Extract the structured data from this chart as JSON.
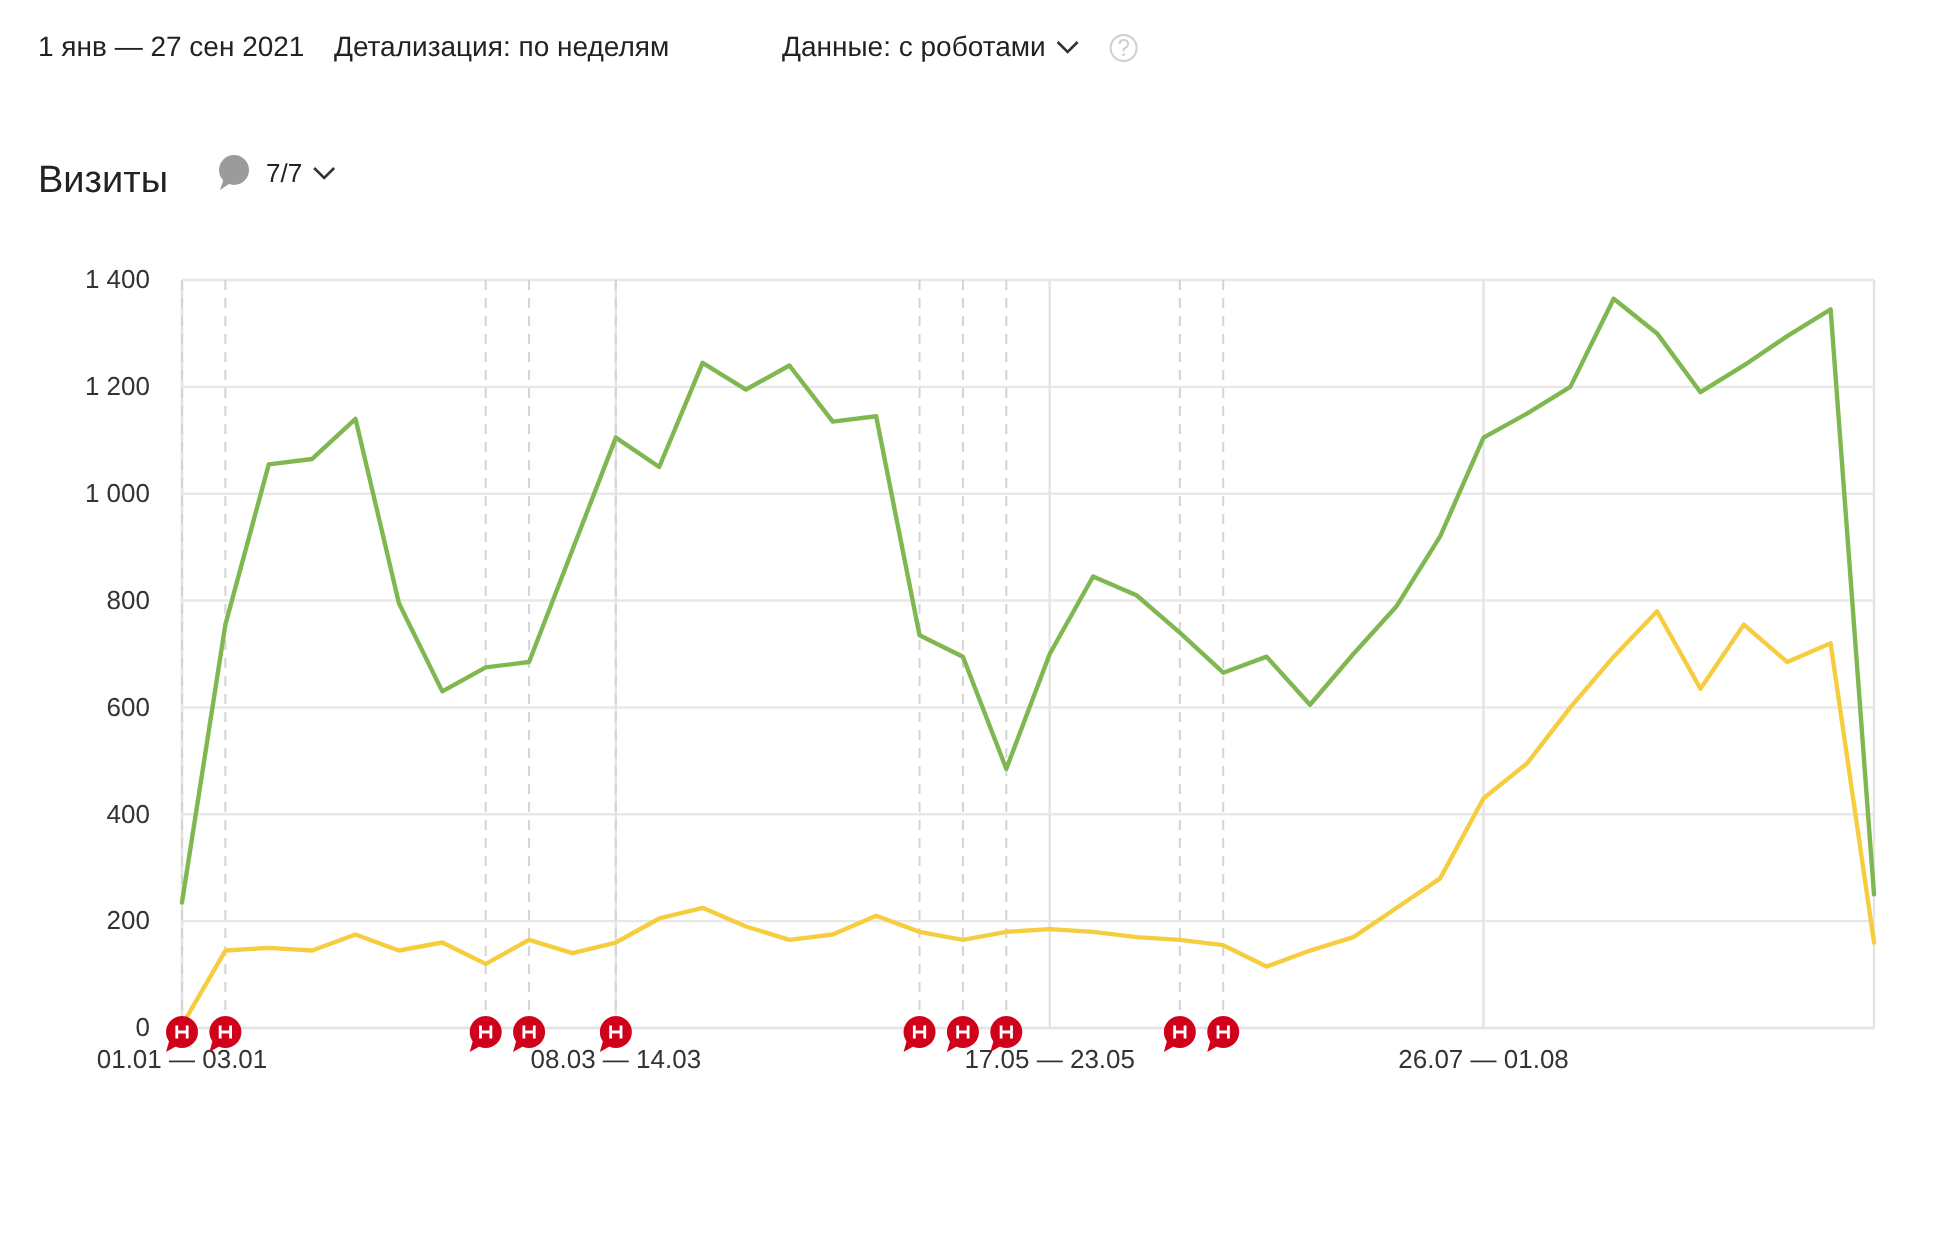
{
  "chart_data": {
    "type": "line",
    "title": "Визиты",
    "annotations": [
      "1 янв — 27 сен 2021",
      "Детализация: по неделям",
      "Данные: с роботами",
      "7/7"
    ],
    "x": [
      "2020-12-28",
      "2021-01-04",
      "2021-01-11",
      "2021-01-18",
      "2021-01-25",
      "2021-02-01",
      "2021-02-08",
      "2021-02-15",
      "2021-02-22",
      "2021-03-01",
      "2021-03-08",
      "2021-03-15",
      "2021-03-22",
      "2021-03-29",
      "2021-04-05",
      "2021-04-12",
      "2021-04-19",
      "2021-04-26",
      "2021-05-03",
      "2021-05-10",
      "2021-05-17",
      "2021-05-24",
      "2021-05-31",
      "2021-06-07",
      "2021-06-14",
      "2021-06-21",
      "2021-06-28",
      "2021-07-05",
      "2021-07-12",
      "2021-07-19",
      "2021-07-26",
      "2021-08-02",
      "2021-08-09",
      "2021-08-16",
      "2021-08-23",
      "2021-08-30",
      "2021-09-06",
      "2021-09-13",
      "2021-09-20",
      "2021-09-27"
    ],
    "series": [
      {
        "color": "#7fb850",
        "values": [
          235,
          755,
          1055,
          1065,
          1140,
          795,
          630,
          675,
          685,
          895,
          1105,
          1050,
          1245,
          1195,
          1240,
          1135,
          1145,
          735,
          695,
          485,
          700,
          845,
          810,
          740,
          665,
          695,
          605,
          700,
          790,
          920,
          1105,
          1150,
          1200,
          1365,
          1300,
          1190,
          1240,
          1295,
          1345,
          250
        ]
      },
      {
        "color": "#f5cd3f",
        "values": [
          5,
          145,
          150,
          145,
          175,
          145,
          160,
          120,
          165,
          140,
          160,
          205,
          225,
          190,
          165,
          175,
          210,
          180,
          165,
          180,
          185,
          180,
          170,
          165,
          155,
          115,
          145,
          170,
          225,
          280,
          430,
          495,
          600,
          695,
          780,
          635,
          755,
          685,
          720,
          160
        ]
      }
    ],
    "xlim": [
      "2020-12-28",
      "2021-09-27"
    ],
    "xticks": [
      {
        "value": "2020-12-28",
        "label": "01.01 — 03.01"
      },
      {
        "value": "2021-03-08",
        "label": "08.03 — 14.03"
      },
      {
        "value": "2021-05-17",
        "label": "17.05 — 23.05"
      },
      {
        "value": "2021-07-26",
        "label": "26.07 — 01.08"
      }
    ],
    "ylim": [
      0,
      1400
    ],
    "yticks": [
      0,
      200,
      400,
      600,
      800,
      {
        "value": 1000,
        "label": "1 000"
      },
      {
        "value": 1200,
        "label": "1 200"
      },
      {
        "value": 1400,
        "label": "1 400"
      }
    ],
    "grid": true,
    "ref_lines": [
      {
        "axis": "x",
        "value": "2020-12-28",
        "color": "#d4d4d4",
        "line_style": "dashed"
      },
      {
        "axis": "x",
        "value": "2021-01-04",
        "color": "#d4d4d4",
        "line_style": "dashed"
      },
      {
        "axis": "x",
        "value": "2021-02-15",
        "color": "#d4d4d4",
        "line_style": "dashed"
      },
      {
        "axis": "x",
        "value": "2021-02-22",
        "color": "#d4d4d4",
        "line_style": "dashed"
      },
      {
        "axis": "x",
        "value": "2021-03-08",
        "color": "#d4d4d4",
        "line_style": "dashed"
      },
      {
        "axis": "x",
        "value": "2021-04-26",
        "color": "#d4d4d4",
        "line_style": "dashed"
      },
      {
        "axis": "x",
        "value": "2021-05-03",
        "color": "#d4d4d4",
        "line_style": "dashed"
      },
      {
        "axis": "x",
        "value": "2021-05-10",
        "color": "#d4d4d4",
        "line_style": "dashed"
      },
      {
        "axis": "x",
        "value": "2021-06-07",
        "color": "#d4d4d4",
        "line_style": "dashed"
      },
      {
        "axis": "x",
        "value": "2021-06-14",
        "color": "#d4d4d4",
        "line_style": "dashed"
      }
    ]
  }
}
